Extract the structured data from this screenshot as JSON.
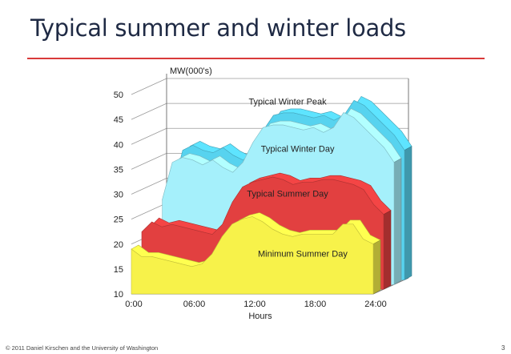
{
  "slide": {
    "title": "Typical summer and winter loads",
    "footer": "© 2011 Daniel Kirschen and the University of Washington",
    "page_number": "3"
  },
  "colors": {
    "rule": "#d93a3a",
    "winter_peak": "#57d3ef",
    "winter_day": "#a5f0fb",
    "summer_day": "#e24040",
    "minimum_summer": "#f7f24a"
  },
  "chart_data": {
    "type": "area",
    "title": "",
    "ylabel": "MW(000's)",
    "xlabel": "Hours",
    "ylim": [
      10,
      50
    ],
    "yticks": [
      10,
      15,
      20,
      25,
      30,
      35,
      40,
      45,
      50
    ],
    "xticks": [
      "0:00",
      "06:00",
      "12:00",
      "18:00",
      "24:00"
    ],
    "xlim": [
      0,
      24
    ],
    "grid": true,
    "series": [
      {
        "name": "Typical Winter Peak",
        "color": "#57d3ef",
        "x": [
          1,
          2,
          3,
          4,
          5,
          6,
          7,
          8,
          9,
          10,
          11,
          12,
          13,
          14,
          15,
          16,
          17,
          18,
          19,
          20,
          21,
          22,
          23,
          24
        ],
        "values": [
          28,
          36,
          37,
          36,
          35.5,
          36.5,
          35,
          34,
          36,
          40,
          43,
          43.5,
          43.5,
          43,
          42.5,
          43,
          42,
          43,
          46,
          45,
          43,
          41,
          39,
          36
        ]
      },
      {
        "name": "Typical Winter Day",
        "color": "#a5f0fb",
        "x": [
          1,
          2,
          3,
          4,
          5,
          6,
          7,
          8,
          9,
          10,
          11,
          12,
          13,
          14,
          15,
          16,
          17,
          18,
          19,
          20,
          21,
          22,
          23,
          24
        ],
        "values": [
          27,
          34.5,
          35.5,
          35,
          34,
          35,
          33.5,
          32.5,
          34.5,
          38.5,
          41.5,
          42,
          42,
          41.5,
          41,
          41.5,
          40.5,
          41.5,
          44.5,
          43.5,
          41.5,
          39.5,
          37.5,
          34.5
        ]
      },
      {
        "name": "Typical Summer Day",
        "color": "#e24040",
        "x": [
          0,
          1,
          2,
          3,
          4,
          5,
          6,
          7,
          8,
          9,
          10,
          11,
          12,
          13,
          14,
          15,
          16,
          17,
          18,
          19,
          20,
          21,
          22,
          23,
          24
        ],
        "values": [
          21.5,
          23.5,
          22.5,
          23,
          22.5,
          22,
          21.5,
          21,
          23,
          27.5,
          30.5,
          31.5,
          32,
          32.5,
          32,
          31,
          31.5,
          31.5,
          32,
          32,
          31.5,
          31,
          30,
          27,
          25
        ]
      },
      {
        "name": "Minimum Summer Day",
        "color": "#f7f24a",
        "x": [
          0,
          1,
          2,
          3,
          4,
          5,
          6,
          7,
          8,
          9,
          10,
          11,
          12,
          13,
          14,
          15,
          16,
          17,
          18,
          19,
          20,
          21,
          22,
          23,
          24
        ],
        "values": [
          19,
          17.5,
          17.5,
          17,
          16.5,
          16,
          15.5,
          16,
          18,
          21.5,
          24,
          25,
          25.5,
          24.5,
          23,
          22,
          21.5,
          22,
          22,
          22,
          22,
          24,
          24,
          21,
          20
        ]
      }
    ],
    "annotations": [
      {
        "text": "Typical Winter Peak",
        "x": 15.5,
        "y": 48
      },
      {
        "text": "Typical Winter Day",
        "x": 16.5,
        "y": 38.5
      },
      {
        "text": "Typical Summer Day",
        "x": 15.5,
        "y": 29.5
      },
      {
        "text": "Minimum Summer Day",
        "x": 17,
        "y": 17.5
      }
    ]
  }
}
